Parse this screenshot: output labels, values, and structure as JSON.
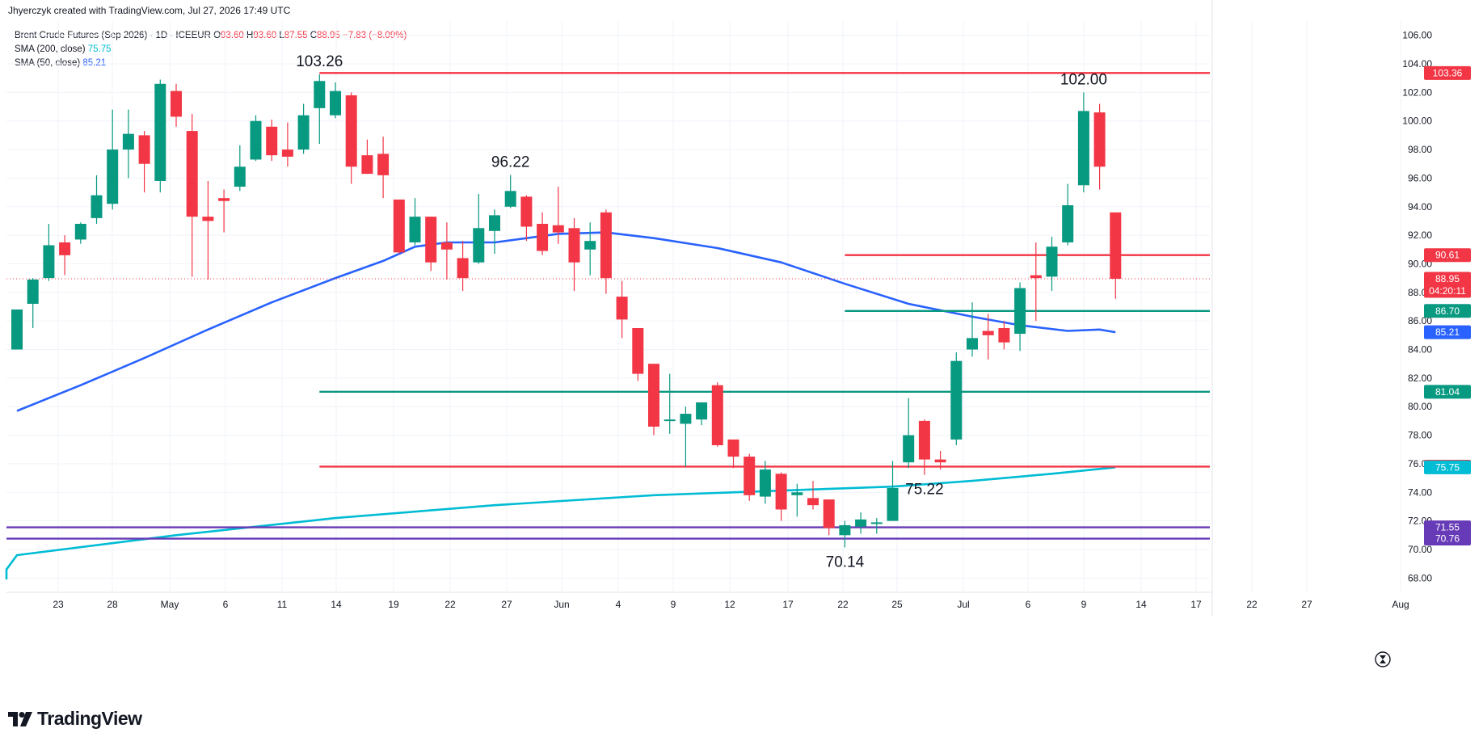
{
  "header": {
    "credit": "Jhyerczyk created with TradingView.com, Jul 27, 2026 17:49 UTC"
  },
  "legend": {
    "symbol": "Brent Crude Futures (Sep 2026) · 1D · ICEEUR",
    "o_label": "O",
    "o_value": "93.60",
    "h_label": "H",
    "h_value": "93.60",
    "l_label": "L",
    "l_value": "87.55",
    "c_label": "C",
    "c_value": "88.95",
    "change": "−7.83 (−8.09%)",
    "sma200_label": "SMA (200, close)",
    "sma200_value": "75.75",
    "sma50_label": "SMA (50, close)",
    "sma50_value": "85.21"
  },
  "footer": {
    "brand": "TradingView"
  },
  "colors": {
    "up": "#089981",
    "down": "#f23645",
    "sma50": "#2962ff",
    "sma200": "#00bcd4",
    "support": "#089981",
    "resistance": "#f23645",
    "purple": "#673ab7"
  },
  "chart_data": {
    "type": "candlestick",
    "ylim": [
      67,
      107
    ],
    "y_ticks": [
      68,
      70,
      72,
      74,
      76,
      78,
      80,
      82,
      84,
      86,
      88,
      90,
      92,
      94,
      96,
      98,
      100,
      102,
      104,
      106
    ],
    "x_ticks": [
      "23",
      "28",
      "May",
      "6",
      "11",
      "14",
      "19",
      "22",
      "27",
      "Jun",
      "4",
      "9",
      "12",
      "17",
      "22",
      "25",
      "Jul",
      "6",
      "9",
      "14",
      "17",
      "22",
      "27",
      "Aug"
    ],
    "candles": [
      {
        "o": 84.0,
        "h": 86.8,
        "l": 84.0,
        "c": 86.8
      },
      {
        "o": 87.2,
        "h": 89.0,
        "l": 85.5,
        "c": 88.9
      },
      {
        "o": 89.0,
        "h": 92.8,
        "l": 88.8,
        "c": 91.3
      },
      {
        "o": 91.5,
        "h": 92.0,
        "l": 89.2,
        "c": 90.6
      },
      {
        "o": 91.7,
        "h": 92.9,
        "l": 91.4,
        "c": 92.8
      },
      {
        "o": 93.2,
        "h": 96.2,
        "l": 92.8,
        "c": 94.8
      },
      {
        "o": 94.2,
        "h": 100.8,
        "l": 93.8,
        "c": 98.0
      },
      {
        "o": 98.0,
        "h": 100.8,
        "l": 96.0,
        "c": 99.1
      },
      {
        "o": 99.0,
        "h": 99.3,
        "l": 95.0,
        "c": 97.0
      },
      {
        "o": 95.8,
        "h": 102.9,
        "l": 95.0,
        "c": 102.6
      },
      {
        "o": 102.1,
        "h": 102.6,
        "l": 99.6,
        "c": 100.3
      },
      {
        "o": 99.3,
        "h": 100.5,
        "l": 89.1,
        "c": 93.3
      },
      {
        "o": 93.3,
        "h": 95.8,
        "l": 88.9,
        "c": 93.0
      },
      {
        "o": 94.6,
        "h": 95.2,
        "l": 92.2,
        "c": 94.4
      },
      {
        "o": 95.4,
        "h": 98.3,
        "l": 95.1,
        "c": 96.8
      },
      {
        "o": 97.3,
        "h": 100.4,
        "l": 97.2,
        "c": 100.0
      },
      {
        "o": 99.6,
        "h": 100.1,
        "l": 97.2,
        "c": 97.6
      },
      {
        "o": 98.0,
        "h": 99.9,
        "l": 96.8,
        "c": 97.5
      },
      {
        "o": 98.0,
        "h": 101.2,
        "l": 97.7,
        "c": 100.4
      },
      {
        "o": 100.9,
        "h": 103.26,
        "l": 98.4,
        "c": 102.8
      },
      {
        "o": 100.4,
        "h": 102.7,
        "l": 100.2,
        "c": 102.1
      },
      {
        "o": 101.8,
        "h": 102.0,
        "l": 95.6,
        "c": 96.8
      },
      {
        "o": 97.6,
        "h": 98.7,
        "l": 96.3,
        "c": 96.3
      },
      {
        "o": 97.7,
        "h": 98.9,
        "l": 94.6,
        "c": 96.2
      },
      {
        "o": 94.5,
        "h": 94.5,
        "l": 90.7,
        "c": 90.8
      },
      {
        "o": 91.5,
        "h": 94.6,
        "l": 91.3,
        "c": 93.3
      },
      {
        "o": 93.3,
        "h": 93.3,
        "l": 89.5,
        "c": 90.1
      },
      {
        "o": 91.5,
        "h": 92.9,
        "l": 88.9,
        "c": 91.0
      },
      {
        "o": 90.4,
        "h": 91.6,
        "l": 88.1,
        "c": 89.0
      },
      {
        "o": 90.1,
        "h": 94.9,
        "l": 90.0,
        "c": 92.5
      },
      {
        "o": 92.3,
        "h": 93.8,
        "l": 90.7,
        "c": 93.4
      },
      {
        "o": 94.0,
        "h": 96.22,
        "l": 93.9,
        "c": 95.1
      },
      {
        "o": 94.7,
        "h": 94.8,
        "l": 91.6,
        "c": 92.6
      },
      {
        "o": 92.8,
        "h": 93.6,
        "l": 90.6,
        "c": 90.9
      },
      {
        "o": 92.7,
        "h": 95.4,
        "l": 91.4,
        "c": 92.2
      },
      {
        "o": 92.5,
        "h": 93.2,
        "l": 88.1,
        "c": 90.1
      },
      {
        "o": 91.0,
        "h": 92.9,
        "l": 89.2,
        "c": 91.6
      },
      {
        "o": 93.6,
        "h": 93.8,
        "l": 87.9,
        "c": 89.0
      },
      {
        "o": 87.7,
        "h": 88.8,
        "l": 84.8,
        "c": 86.1
      },
      {
        "o": 85.5,
        "h": 85.5,
        "l": 81.8,
        "c": 82.3
      },
      {
        "o": 83.0,
        "h": 83.0,
        "l": 78.0,
        "c": 78.6
      },
      {
        "o": 79.1,
        "h": 82.3,
        "l": 78.1,
        "c": 79.1
      },
      {
        "o": 78.8,
        "h": 80.0,
        "l": 75.8,
        "c": 79.5
      },
      {
        "o": 79.1,
        "h": 80.3,
        "l": 78.7,
        "c": 80.3
      },
      {
        "o": 81.5,
        "h": 81.7,
        "l": 77.2,
        "c": 77.3
      },
      {
        "o": 77.7,
        "h": 77.7,
        "l": 75.7,
        "c": 76.5
      },
      {
        "o": 76.5,
        "h": 76.7,
        "l": 73.4,
        "c": 73.8
      },
      {
        "o": 73.7,
        "h": 76.2,
        "l": 73.2,
        "c": 75.6
      },
      {
        "o": 75.3,
        "h": 75.4,
        "l": 72.0,
        "c": 72.8
      },
      {
        "o": 73.8,
        "h": 74.6,
        "l": 72.3,
        "c": 74.0
      },
      {
        "o": 73.6,
        "h": 74.8,
        "l": 72.8,
        "c": 73.1
      },
      {
        "o": 73.5,
        "h": 73.5,
        "l": 71.0,
        "c": 71.5
      },
      {
        "o": 71.0,
        "h": 72.0,
        "l": 70.14,
        "c": 71.7
      },
      {
        "o": 71.6,
        "h": 72.6,
        "l": 71.1,
        "c": 72.1
      },
      {
        "o": 71.8,
        "h": 72.2,
        "l": 71.1,
        "c": 71.9
      },
      {
        "o": 72.0,
        "h": 76.2,
        "l": 72.0,
        "c": 74.3
      },
      {
        "o": 76.1,
        "h": 80.6,
        "l": 75.7,
        "c": 78.0
      },
      {
        "o": 79.0,
        "h": 79.1,
        "l": 75.22,
        "c": 76.3
      },
      {
        "o": 76.3,
        "h": 76.9,
        "l": 75.6,
        "c": 76.1
      },
      {
        "o": 77.7,
        "h": 83.8,
        "l": 77.3,
        "c": 83.2
      },
      {
        "o": 84.0,
        "h": 87.3,
        "l": 83.5,
        "c": 84.8
      },
      {
        "o": 85.3,
        "h": 86.5,
        "l": 83.3,
        "c": 85.0
      },
      {
        "o": 85.5,
        "h": 86.0,
        "l": 84.0,
        "c": 84.5
      },
      {
        "o": 85.1,
        "h": 88.7,
        "l": 83.9,
        "c": 88.3
      },
      {
        "o": 89.2,
        "h": 91.5,
        "l": 86.0,
        "c": 89.0
      },
      {
        "o": 89.1,
        "h": 91.9,
        "l": 88.1,
        "c": 91.2
      },
      {
        "o": 91.5,
        "h": 95.6,
        "l": 91.3,
        "c": 94.1
      },
      {
        "o": 95.5,
        "h": 102.0,
        "l": 95.0,
        "c": 100.7
      },
      {
        "o": 100.6,
        "h": 101.2,
        "l": 95.2,
        "c": 96.8
      },
      {
        "o": 93.6,
        "h": 93.6,
        "l": 87.55,
        "c": 88.95
      }
    ],
    "sma50": [
      [
        0,
        79.7
      ],
      [
        4,
        81.5
      ],
      [
        8,
        83.4
      ],
      [
        12,
        85.4
      ],
      [
        16,
        87.3
      ],
      [
        20,
        89.0
      ],
      [
        23,
        90.2
      ],
      [
        25,
        91.2
      ],
      [
        27,
        91.5
      ],
      [
        30,
        91.5
      ],
      [
        34,
        92.1
      ],
      [
        37,
        92.2
      ],
      [
        40,
        91.8
      ],
      [
        44,
        91.1
      ],
      [
        48,
        90.1
      ],
      [
        52,
        88.6
      ],
      [
        56,
        87.2
      ],
      [
        60,
        86.3
      ],
      [
        63,
        85.7
      ],
      [
        66,
        85.3
      ],
      [
        68,
        85.4
      ],
      [
        69,
        85.21
      ]
    ],
    "sma200": [
      [
        -20,
        67.9
      ],
      [
        -10,
        68.6
      ],
      [
        0,
        69.6
      ],
      [
        10,
        71.0
      ],
      [
        20,
        72.2
      ],
      [
        30,
        73.1
      ],
      [
        40,
        73.8
      ],
      [
        50,
        74.2
      ],
      [
        55,
        74.4
      ],
      [
        60,
        74.8
      ],
      [
        65,
        75.3
      ],
      [
        69,
        75.75
      ]
    ],
    "levels": [
      {
        "value": 103.36,
        "label": "103.36",
        "color": "#f23645",
        "start": 19
      },
      {
        "value": 90.61,
        "label": "90.61",
        "color": "#f23645",
        "start": 52
      },
      {
        "value": 86.7,
        "label": "86.70",
        "color": "#089981",
        "start": 52
      },
      {
        "value": 81.04,
        "label": "81.04",
        "color": "#089981",
        "start": 19
      },
      {
        "value": 75.8,
        "label": "75.80",
        "color": "#f23645",
        "start": 19
      },
      {
        "value": 71.55,
        "label": "71.55",
        "color": "#673ab7",
        "start": -40
      },
      {
        "value": 70.76,
        "label": "70.76",
        "color": "#673ab7",
        "start": -40
      }
    ],
    "annotations": [
      {
        "text": "103.26",
        "index": 19,
        "value": 103.26,
        "pos": "above"
      },
      {
        "text": "96.22",
        "index": 31,
        "value": 96.22,
        "pos": "above"
      },
      {
        "text": "102.00",
        "index": 67,
        "value": 102.0,
        "pos": "above"
      },
      {
        "text": "75.22",
        "index": 57,
        "value": 75.22,
        "pos": "below"
      },
      {
        "text": "70.14",
        "index": 52,
        "value": 70.14,
        "pos": "below"
      }
    ],
    "price_tags": [
      {
        "value": 88.95,
        "label": "88.95",
        "sub": "04:20:11",
        "color": "#f23645"
      },
      {
        "value": 85.21,
        "label": "85.21",
        "color": "#2962ff"
      },
      {
        "value": 75.75,
        "label": "75.75",
        "color": "#00bcd4"
      }
    ]
  }
}
